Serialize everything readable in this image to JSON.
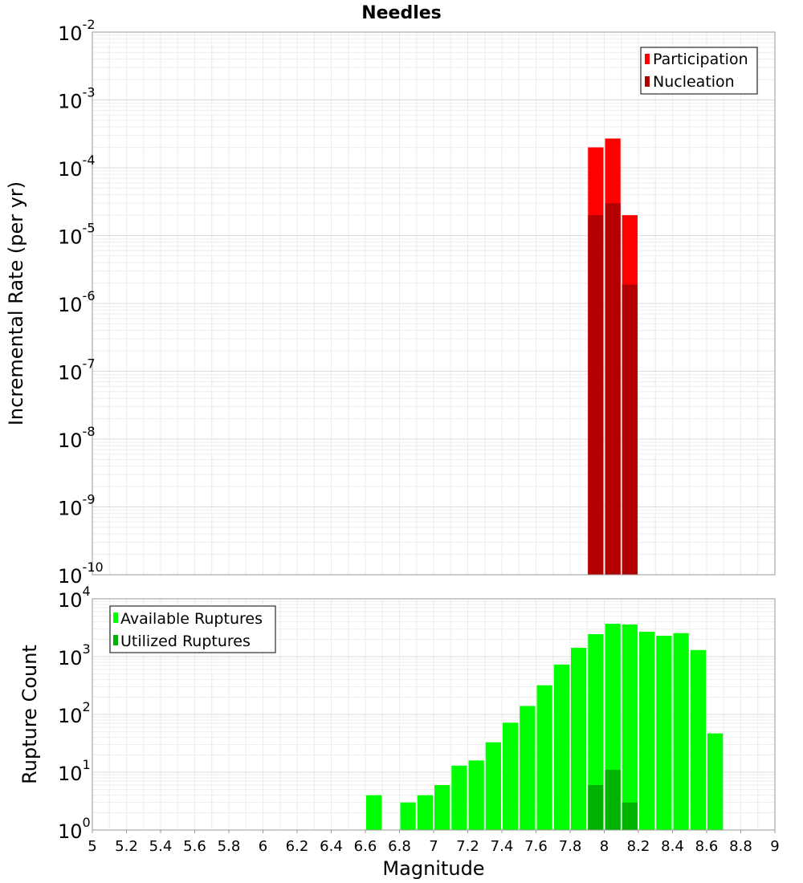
{
  "chart_data": [
    {
      "type": "bar",
      "title": "Needles",
      "ylabel": "Incremental Rate (per yr)",
      "yscale": "log",
      "ylim": [
        1e-10,
        0.01
      ],
      "xlim": [
        5,
        9
      ],
      "grid": true,
      "legend_position": "top-right",
      "y_tick_exponents": [
        "-10",
        "-9",
        "-8",
        "-7",
        "-6",
        "-5",
        "-4",
        "-3",
        "-2"
      ],
      "y_tick_base": "10",
      "bin_width": 0.1,
      "series": [
        {
          "name": "Participation",
          "color": "#ff0000",
          "points": [
            {
              "x": 7.95,
              "y": 0.0002
            },
            {
              "x": 8.05,
              "y": 0.00027
            },
            {
              "x": 8.15,
              "y": 2e-05
            }
          ]
        },
        {
          "name": "Nucleation",
          "color": "#b20000",
          "points": [
            {
              "x": 7.95,
              "y": 2e-05
            },
            {
              "x": 8.05,
              "y": 3e-05
            },
            {
              "x": 8.15,
              "y": 1.9e-06
            }
          ]
        }
      ]
    },
    {
      "type": "bar",
      "ylabel": "Rupture Count",
      "xlabel": "Magnitude",
      "yscale": "log",
      "ylim": [
        1,
        10000
      ],
      "xlim": [
        5,
        9
      ],
      "grid": true,
      "legend_position": "top-left",
      "x_ticks": [
        "5",
        "5.2",
        "5.4",
        "5.6",
        "5.8",
        "6",
        "6.2",
        "6.4",
        "6.6",
        "6.8",
        "7",
        "7.2",
        "7.4",
        "7.6",
        "7.8",
        "8",
        "8.2",
        "8.4",
        "8.6",
        "8.8",
        "9"
      ],
      "y_tick_exponents": [
        "0",
        "1",
        "2",
        "3",
        "4"
      ],
      "y_tick_base": "10",
      "bin_width": 0.1,
      "series": [
        {
          "name": "Available Ruptures",
          "color": "#00ff00",
          "points": [
            {
              "x": 6.65,
              "y": 4
            },
            {
              "x": 6.85,
              "y": 3
            },
            {
              "x": 6.95,
              "y": 4
            },
            {
              "x": 7.05,
              "y": 6
            },
            {
              "x": 7.15,
              "y": 13
            },
            {
              "x": 7.25,
              "y": 16
            },
            {
              "x": 7.35,
              "y": 33
            },
            {
              "x": 7.45,
              "y": 72
            },
            {
              "x": 7.55,
              "y": 140
            },
            {
              "x": 7.65,
              "y": 320
            },
            {
              "x": 7.75,
              "y": 730
            },
            {
              "x": 7.85,
              "y": 1420
            },
            {
              "x": 7.95,
              "y": 2450
            },
            {
              "x": 8.05,
              "y": 3700
            },
            {
              "x": 8.15,
              "y": 3600
            },
            {
              "x": 8.25,
              "y": 2700
            },
            {
              "x": 8.35,
              "y": 2300
            },
            {
              "x": 8.45,
              "y": 2550
            },
            {
              "x": 8.55,
              "y": 1300
            },
            {
              "x": 8.65,
              "y": 47
            }
          ]
        },
        {
          "name": "Utilized Ruptures",
          "color": "#00b200",
          "points": [
            {
              "x": 7.95,
              "y": 6
            },
            {
              "x": 8.05,
              "y": 11
            },
            {
              "x": 8.15,
              "y": 3
            }
          ]
        }
      ]
    }
  ]
}
